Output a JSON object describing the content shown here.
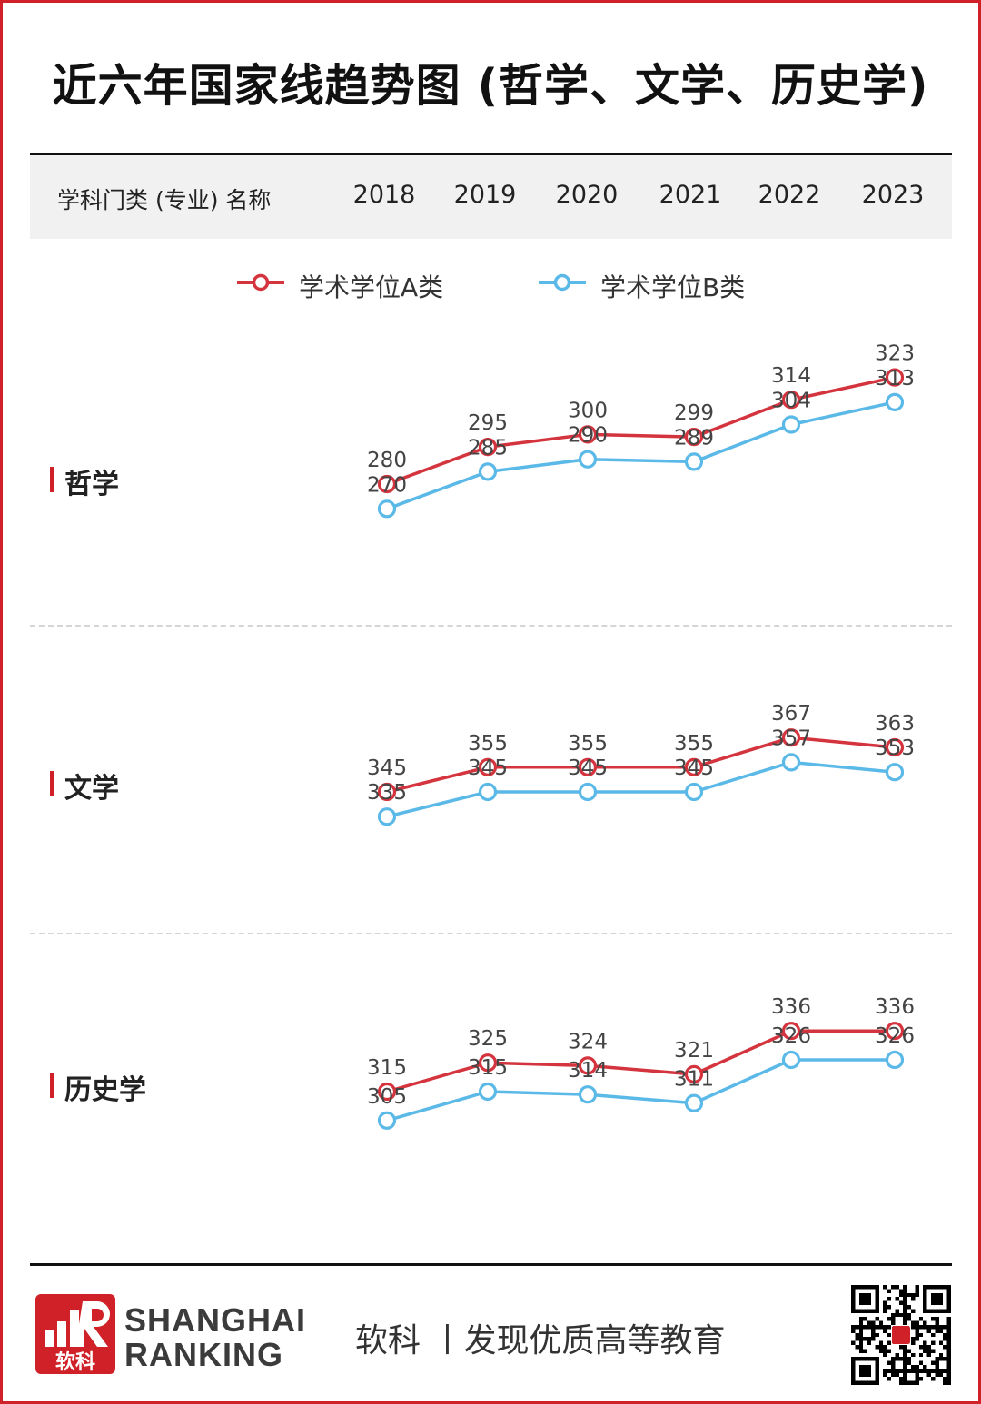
{
  "title": "近六年国家线趋势图 (哲学、文学、历史学)",
  "header": {
    "label": "学科门类 (专业) 名称",
    "years": [
      "2018",
      "2019",
      "2020",
      "2021",
      "2022",
      "2023"
    ]
  },
  "legend": [
    {
      "label": "学术学位A类",
      "color": "#d4343d"
    },
    {
      "label": "学术学位B类",
      "color": "#5bb9e8"
    }
  ],
  "colors": {
    "accent": "#cf2127",
    "series_a": "#d4343d",
    "series_b": "#5bb9e8"
  },
  "chart_data": [
    {
      "type": "line",
      "categories": [
        "2018",
        "2019",
        "2020",
        "2021",
        "2022",
        "2023"
      ],
      "subject": "哲学",
      "series": [
        {
          "name": "学术学位A类",
          "values": [
            280,
            295,
            300,
            299,
            314,
            323
          ]
        },
        {
          "name": "学术学位B类",
          "values": [
            270,
            285,
            290,
            289,
            304,
            313
          ]
        }
      ]
    },
    {
      "type": "line",
      "categories": [
        "2018",
        "2019",
        "2020",
        "2021",
        "2022",
        "2023"
      ],
      "subject": "文学",
      "series": [
        {
          "name": "学术学位A类",
          "values": [
            345,
            355,
            355,
            355,
            367,
            363
          ]
        },
        {
          "name": "学术学位B类",
          "values": [
            335,
            345,
            345,
            345,
            357,
            353
          ]
        }
      ]
    },
    {
      "type": "line",
      "categories": [
        "2018",
        "2019",
        "2020",
        "2021",
        "2022",
        "2023"
      ],
      "subject": "历史学",
      "series": [
        {
          "name": "学术学位A类",
          "values": [
            315,
            325,
            324,
            321,
            336,
            336
          ]
        },
        {
          "name": "学术学位B类",
          "values": [
            305,
            315,
            314,
            311,
            326,
            326
          ]
        }
      ]
    }
  ],
  "footer": {
    "logo_text": "软科",
    "brand_line1": "SHANGHAI",
    "brand_line2": "RANKING",
    "slogan": "软科 丨发现优质高等教育",
    "icons": [
      "shanghairanking-logo-icon",
      "qr-code-icon"
    ]
  }
}
